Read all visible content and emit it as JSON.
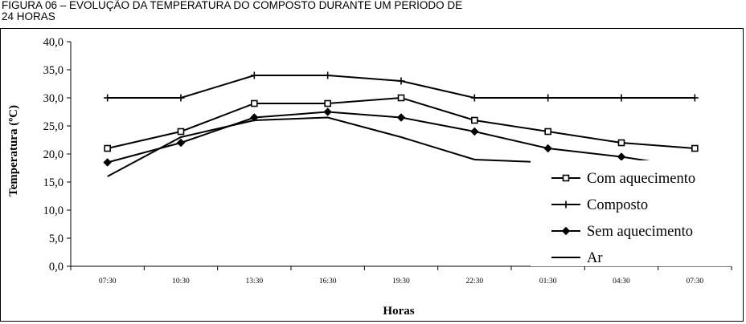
{
  "caption": {
    "line1": "FIGURA 06 – EVOLUÇÃO DA TEMPERATURA DO COMPOSTO DURANTE UM PERÍODO DE",
    "line2": "24 HORAS"
  },
  "chart_data": {
    "type": "line",
    "title": "",
    "xlabel": "Horas",
    "ylabel": "Temperatura (ºC)",
    "categories": [
      "07:30",
      "10:30",
      "13:30",
      "16:30",
      "19:30",
      "22:30",
      "01:30",
      "04:30",
      "07:30"
    ],
    "y_ticks": [
      "0,0",
      "5,0",
      "10,0",
      "15,0",
      "20,0",
      "25,0",
      "30,0",
      "35,0",
      "40,0"
    ],
    "ylim": [
      0,
      40
    ],
    "grid": false,
    "legend_position": "bottom-right",
    "series": [
      {
        "name": "Com aquecimento",
        "marker": "square",
        "values": [
          21,
          24,
          29,
          29,
          30,
          26,
          24,
          22,
          21
        ]
      },
      {
        "name": "Composto",
        "marker": "plus",
        "values": [
          30,
          30,
          34,
          34,
          33,
          30,
          30,
          30,
          30
        ]
      },
      {
        "name": "Sem aquecimento",
        "marker": "diamond",
        "values": [
          18.5,
          22,
          26.5,
          27.5,
          26.5,
          24,
          21,
          19.5,
          17.5
        ]
      },
      {
        "name": "Ar",
        "marker": "none",
        "values": [
          16,
          23,
          26,
          26.5,
          23,
          19,
          18.5,
          18,
          18
        ]
      }
    ],
    "line_color": "#000000"
  }
}
